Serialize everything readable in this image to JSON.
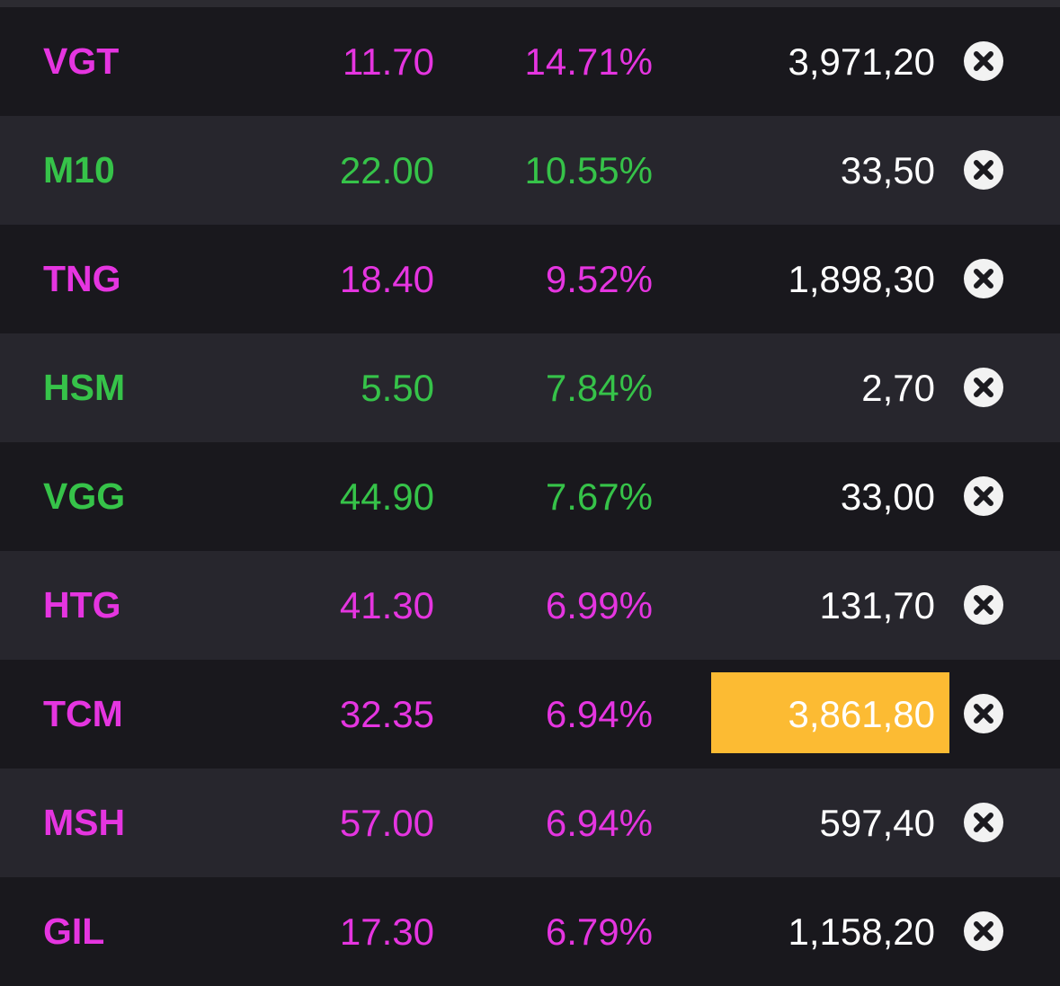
{
  "colors": {
    "background": "#19181d",
    "row_alt": "#27262d",
    "ceiling": "#e535e0",
    "up": "#36c349",
    "highlight": "#fcbb33",
    "volume_text": "#ffffff"
  },
  "rows": [
    {
      "symbol": "VGT",
      "price": "11.70",
      "change_pct": "14.71%",
      "volume": "3,971,20",
      "trend": "ceiling",
      "highlight": false,
      "remove_icon": "close-circle-icon"
    },
    {
      "symbol": "M10",
      "price": "22.00",
      "change_pct": "10.55%",
      "volume": "33,50",
      "trend": "up",
      "highlight": false,
      "remove_icon": "close-circle-icon"
    },
    {
      "symbol": "TNG",
      "price": "18.40",
      "change_pct": "9.52%",
      "volume": "1,898,30",
      "trend": "ceiling",
      "highlight": false,
      "remove_icon": "close-circle-icon"
    },
    {
      "symbol": "HSM",
      "price": "5.50",
      "change_pct": "7.84%",
      "volume": "2,70",
      "trend": "up",
      "highlight": false,
      "remove_icon": "close-circle-icon"
    },
    {
      "symbol": "VGG",
      "price": "44.90",
      "change_pct": "7.67%",
      "volume": "33,00",
      "trend": "up",
      "highlight": false,
      "remove_icon": "close-circle-icon"
    },
    {
      "symbol": "HTG",
      "price": "41.30",
      "change_pct": "6.99%",
      "volume": "131,70",
      "trend": "ceiling",
      "highlight": false,
      "remove_icon": "close-circle-icon"
    },
    {
      "symbol": "TCM",
      "price": "32.35",
      "change_pct": "6.94%",
      "volume": "3,861,80",
      "trend": "ceiling",
      "highlight": true,
      "remove_icon": "close-circle-icon"
    },
    {
      "symbol": "MSH",
      "price": "57.00",
      "change_pct": "6.94%",
      "volume": "597,40",
      "trend": "ceiling",
      "highlight": false,
      "remove_icon": "close-circle-icon"
    },
    {
      "symbol": "GIL",
      "price": "17.30",
      "change_pct": "6.79%",
      "volume": "1,158,20",
      "trend": "ceiling",
      "highlight": false,
      "remove_icon": "close-circle-icon"
    }
  ]
}
